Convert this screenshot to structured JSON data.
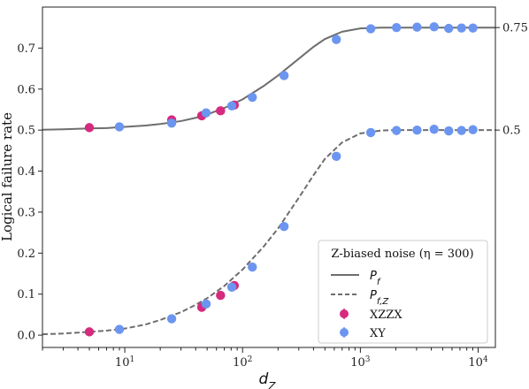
{
  "chart_data": {
    "type": "line",
    "xlabel": "d",
    "xlabel_sub": "Z",
    "ylabel": "Logical failure rate",
    "xscale": "log",
    "xlim": [
      2,
      14000
    ],
    "ylim": [
      -0.03,
      0.8
    ],
    "x_major_ticks": [
      10,
      100,
      1000,
      10000
    ],
    "x_tick_labels": [
      {
        "base": "10",
        "exp": "1"
      },
      {
        "base": "10",
        "exp": "2"
      },
      {
        "base": "10",
        "exp": "3"
      },
      {
        "base": "10",
        "exp": "4"
      }
    ],
    "y_ticks": [
      0.0,
      0.1,
      0.2,
      0.3,
      0.4,
      0.5,
      0.6,
      0.7
    ],
    "y_tick_labels": [
      "0.0",
      "0.1",
      "0.2",
      "0.3",
      "0.4",
      "0.5",
      "0.6",
      "0.7"
    ],
    "right_ticks": [
      0.75,
      0.5
    ],
    "right_tick_labels": [
      "0.75",
      "0.5"
    ],
    "grid": false,
    "legend": {
      "placement": "lower-right",
      "title": "Z-biased noise (η = 300)",
      "entries": [
        {
          "label_base": "P",
          "label_sub": "f",
          "style": "solid"
        },
        {
          "label_base": "P",
          "label_sub": "f,Z",
          "style": "dashed"
        },
        {
          "label": "XZZX",
          "style": "marker",
          "color": "#d62a7e"
        },
        {
          "label": "XY",
          "style": "marker",
          "color": "#6b95f0"
        }
      ]
    },
    "series": [
      {
        "key": "pf_curve",
        "style": "solid",
        "color": "#6e6e6e",
        "x": [
          2,
          3,
          5,
          7,
          10,
          15,
          20,
          30,
          40,
          50,
          70,
          100,
          150,
          200,
          300,
          400,
          500,
          700,
          1000,
          1500,
          2000,
          3000,
          5000,
          10000,
          14000
        ],
        "y": [
          0.501,
          0.502,
          0.504,
          0.505,
          0.508,
          0.511,
          0.515,
          0.522,
          0.53,
          0.538,
          0.554,
          0.575,
          0.607,
          0.633,
          0.674,
          0.703,
          0.722,
          0.74,
          0.748,
          0.75,
          0.75,
          0.75,
          0.75,
          0.75,
          0.75
        ]
      },
      {
        "key": "pfz_curve",
        "style": "dashed",
        "color": "#6e6e6e",
        "x": [
          2,
          3,
          5,
          7,
          10,
          15,
          20,
          30,
          40,
          50,
          70,
          100,
          150,
          200,
          300,
          400,
          500,
          700,
          1000,
          1500,
          2000,
          3000,
          5000,
          10000,
          14000
        ],
        "y": [
          0.002,
          0.004,
          0.008,
          0.011,
          0.016,
          0.026,
          0.037,
          0.056,
          0.074,
          0.09,
          0.12,
          0.16,
          0.215,
          0.26,
          0.335,
          0.39,
          0.43,
          0.47,
          0.492,
          0.499,
          0.5,
          0.5,
          0.5,
          0.5,
          0.5
        ]
      },
      {
        "key": "xzzx_pf",
        "name": "XZZX",
        "style": "marker",
        "color": "#d62a7e",
        "x": [
          5,
          25,
          45,
          65,
          85
        ],
        "y": [
          0.506,
          0.525,
          0.535,
          0.547,
          0.561
        ]
      },
      {
        "key": "xzzx_pfz",
        "name": "XZZX",
        "style": "marker",
        "color": "#d62a7e",
        "x": [
          5,
          45,
          65,
          85
        ],
        "y": [
          0.008,
          0.068,
          0.097,
          0.121
        ]
      },
      {
        "key": "xy_pf",
        "name": "XY",
        "style": "marker",
        "color": "#6b95f0",
        "x": [
          9,
          25,
          49,
          81,
          121,
          225,
          625,
          1225,
          2025,
          3025,
          4225,
          5625,
          7225,
          9025
        ],
        "y": [
          0.508,
          0.517,
          0.542,
          0.559,
          0.58,
          0.633,
          0.721,
          0.747,
          0.75,
          0.751,
          0.752,
          0.748,
          0.749,
          0.749
        ]
      },
      {
        "key": "xy_pfz",
        "name": "XY",
        "style": "marker",
        "color": "#6b95f0",
        "x": [
          9,
          25,
          49,
          81,
          121,
          225,
          625,
          1225,
          2025,
          3025,
          4225,
          5625,
          7225,
          9025
        ],
        "y": [
          0.014,
          0.04,
          0.076,
          0.117,
          0.166,
          0.265,
          0.436,
          0.494,
          0.499,
          0.5,
          0.502,
          0.498,
          0.499,
          0.501
        ]
      }
    ]
  }
}
